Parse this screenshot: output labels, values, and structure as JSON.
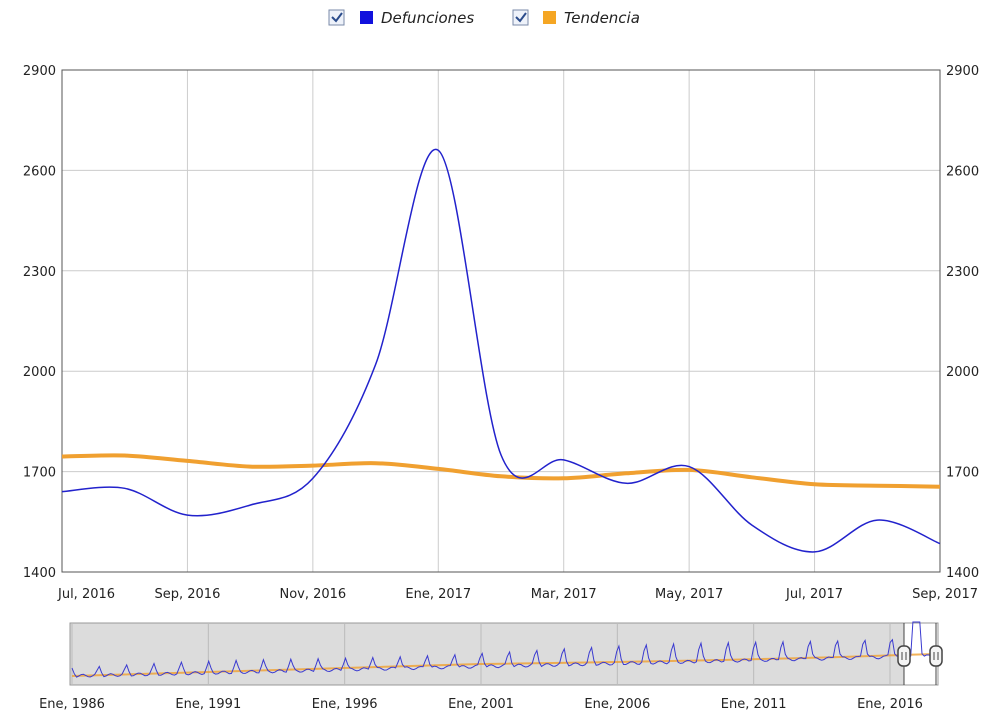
{
  "chart_data": {
    "type": "line",
    "title": "",
    "xlabel": "",
    "ylabel": "",
    "ylim": [
      1400,
      2900
    ],
    "yticks": [
      "1400",
      "1700",
      "2000",
      "2300",
      "2600",
      "2900"
    ],
    "x_range": [
      "2016-07",
      "2017-09"
    ],
    "xticks": [
      "Jul, 2016",
      "Sep, 2016",
      "Nov, 2016",
      "Ene, 2017",
      "Mar, 2017",
      "May, 2017",
      "Jul, 2017",
      "Sep, 2017"
    ],
    "grid": true,
    "legend_position": "top-center",
    "series": [
      {
        "name": "Defunciones",
        "color": "#2222cc",
        "points": [
          [
            "2016-07",
            1640
          ],
          [
            "2016-08",
            1650
          ],
          [
            "2016-09",
            1570
          ],
          [
            "2016-10",
            1600
          ],
          [
            "2016-11",
            1680
          ],
          [
            "2016-12",
            2020
          ],
          [
            "2017-01",
            2660
          ],
          [
            "2017-02",
            1750
          ],
          [
            "2017-03",
            1735
          ],
          [
            "2017-04",
            1665
          ],
          [
            "2017-05",
            1715
          ],
          [
            "2017-06",
            1540
          ],
          [
            "2017-07",
            1460
          ],
          [
            "2017-08",
            1555
          ],
          [
            "2017-09",
            1485
          ]
        ]
      },
      {
        "name": "Tendencia",
        "color": "#f0a030",
        "points": [
          [
            "2016-07",
            1745
          ],
          [
            "2016-08",
            1748
          ],
          [
            "2016-09",
            1732
          ],
          [
            "2016-10",
            1715
          ],
          [
            "2016-11",
            1718
          ],
          [
            "2016-12",
            1725
          ],
          [
            "2017-01",
            1708
          ],
          [
            "2017-02",
            1686
          ],
          [
            "2017-03",
            1680
          ],
          [
            "2017-04",
            1695
          ],
          [
            "2017-05",
            1705
          ],
          [
            "2017-06",
            1683
          ],
          [
            "2017-07",
            1662
          ],
          [
            "2017-08",
            1658
          ],
          [
            "2017-09",
            1655
          ]
        ]
      }
    ],
    "navigator": {
      "xticks": [
        "Ene, 1986",
        "Ene, 1991",
        "Ene, 1996",
        "Ene, 2001",
        "Ene, 2006",
        "Ene, 2011",
        "Ene, 2016"
      ],
      "x_range": [
        "1986-01",
        "2017-09"
      ],
      "selected_range": [
        "2016-07",
        "2017-09"
      ]
    }
  },
  "legend": {
    "items": [
      {
        "label": "Defunciones",
        "color": "#1111dd",
        "checked": true
      },
      {
        "label": "Tendencia",
        "color": "#f5a623",
        "checked": true
      }
    ]
  }
}
